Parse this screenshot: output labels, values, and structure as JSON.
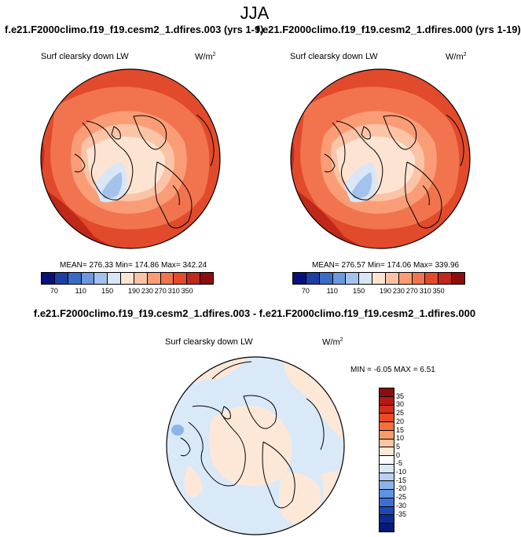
{
  "season": "JJA",
  "variable": "Surf clearsky down LW",
  "units_base": "W/m",
  "units_exp": "2",
  "panels": [
    {
      "title": "f.e21.F2000climo.f19_f19.cesm2_1.dfires.003 (yrs 1-9)",
      "stats": "MEAN= 276.33  Min= 174.86  Max= 342.24",
      "mean": 276.33,
      "min": 174.86,
      "max": 342.24
    },
    {
      "title": "f.e21.F2000climo.f19_f19.cesm2_1.dfires.000 (yrs 1-19)",
      "stats": "MEAN= 276.57  Min= 174.06  Max= 339.96",
      "mean": 276.57,
      "min": 174.06,
      "max": 339.96
    }
  ],
  "diff": {
    "title": "f.e21.F2000climo.f19_f19.cesm2_1.dfires.003 - f.e21.F2000climo.f19_f19.cesm2_1.dfires.000",
    "stats": "MIN =  -6.05 MAX =  6.51",
    "min": -6.05,
    "max": 6.51
  },
  "abs_colorbar": {
    "colors": [
      "#08107a",
      "#1d3fa3",
      "#3a6cc6",
      "#6c98dc",
      "#a3c2ec",
      "#d8e6f7",
      "#fde4d2",
      "#fcc4a6",
      "#fa9d77",
      "#f2744e",
      "#e24a2c",
      "#c0281a",
      "#8b0d0d"
    ],
    "tick_labels": [
      "70",
      "110",
      "150",
      "190",
      "230",
      "270",
      "310",
      "350"
    ],
    "tick_positions": [
      1,
      3,
      5,
      7,
      8,
      9,
      10,
      11
    ]
  },
  "diff_colorbar": {
    "colors": [
      "#8b0d0d",
      "#b31b12",
      "#d32e18",
      "#ea4a25",
      "#f6703b",
      "#f99a68",
      "#fcc6a2",
      "#fde8d8",
      "#ffffff",
      "#dae9f8",
      "#b6d1f2",
      "#8db4ea",
      "#5f92e0",
      "#3a6fd6",
      "#1d48b8",
      "#0c2c94",
      "#061876"
    ],
    "labels": [
      "35",
      "30",
      "25",
      "20",
      "15",
      "10",
      "5",
      "0",
      "-5",
      "-10",
      "-15",
      "-20",
      "-25",
      "-30",
      "-35"
    ]
  },
  "chart_data": [
    {
      "type": "heatmap",
      "title": "Surf clearsky down LW",
      "subtitle": "f.e21.F2000climo.f19_f19.cesm2_1.dfires.003 (yrs 1-9)",
      "units": "W/m^2",
      "projection": "polar stereographic, North Pole",
      "summary": {
        "mean": 276.33,
        "min": 174.86,
        "max": 342.24
      },
      "contour_levels": [
        70,
        90,
        110,
        130,
        150,
        170,
        190,
        210,
        230,
        250,
        270,
        290,
        310,
        330,
        350
      ]
    },
    {
      "type": "heatmap",
      "title": "Surf clearsky down LW",
      "subtitle": "f.e21.F2000climo.f19_f19.cesm2_1.dfires.000 (yrs 1-19)",
      "units": "W/m^2",
      "projection": "polar stereographic, North Pole",
      "summary": {
        "mean": 276.57,
        "min": 174.06,
        "max": 339.96
      },
      "contour_levels": [
        70,
        90,
        110,
        130,
        150,
        170,
        190,
        210,
        230,
        250,
        270,
        290,
        310,
        330,
        350
      ]
    },
    {
      "type": "heatmap",
      "title": "Surf clearsky down LW",
      "subtitle": "f.e21.F2000climo.f19_f19.cesm2_1.dfires.003 - f.e21.F2000climo.f19_f19.cesm2_1.dfires.000",
      "units": "W/m^2",
      "projection": "polar stereographic, North Pole",
      "summary": {
        "min": -6.05,
        "max": 6.51
      },
      "contour_levels": [
        -35,
        -30,
        -25,
        -20,
        -15,
        -10,
        -5,
        0,
        5,
        10,
        15,
        20,
        25,
        30,
        35
      ]
    }
  ]
}
